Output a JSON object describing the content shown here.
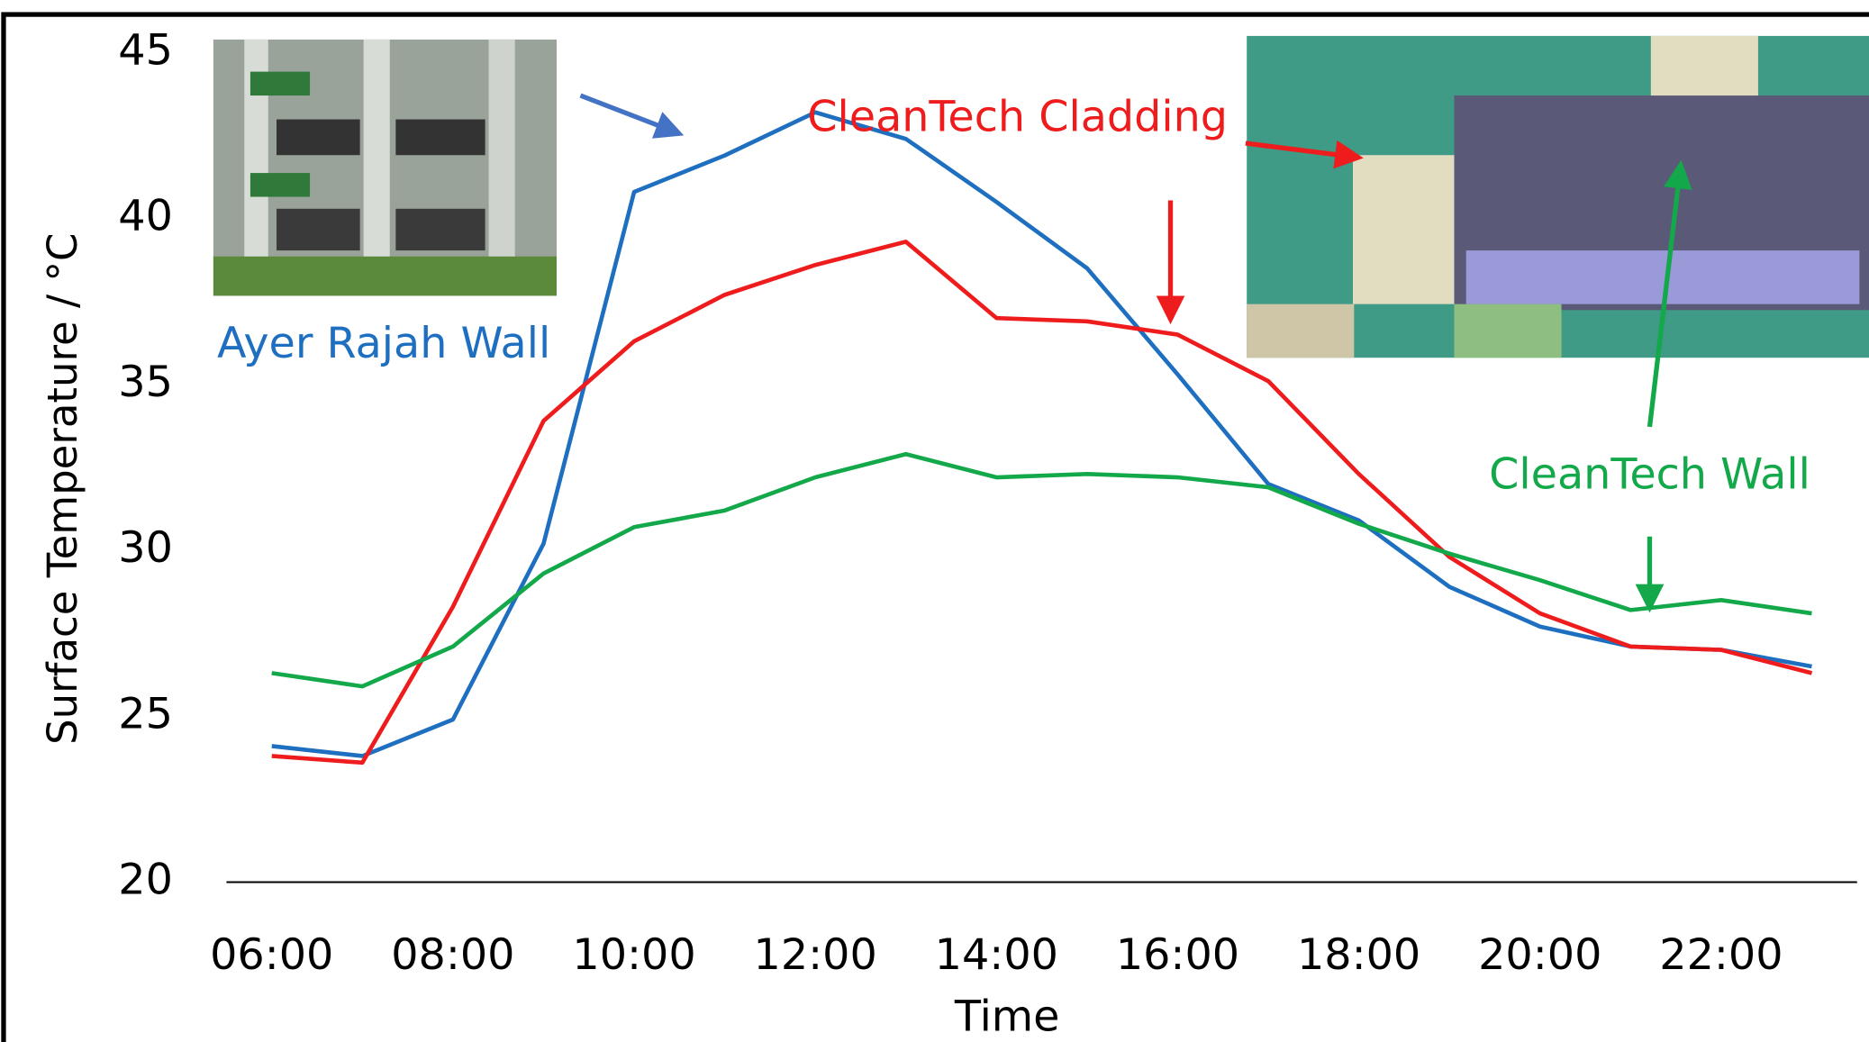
{
  "chart_data": {
    "type": "line",
    "x_label": "Time",
    "y_label": "Surface Temperature / °C",
    "categories": [
      "06:00",
      null,
      "08:00",
      null,
      "10:00",
      null,
      "12:00",
      null,
      "14:00",
      null,
      "16:00",
      null,
      "18:00",
      null,
      "20:00",
      null,
      "22:00",
      null
    ],
    "series": [
      {
        "name": "Ayer Rajah Wall",
        "color": "#1f6fc0",
        "values": [
          24.1,
          23.8,
          24.9,
          30.2,
          40.8,
          41.9,
          43.2,
          42.4,
          40.5,
          38.5,
          35.3,
          32.0,
          30.9,
          28.9,
          27.7,
          27.1,
          27.0,
          26.5
        ]
      },
      {
        "name": "CleanTech Cladding",
        "color": "#ee1c1c",
        "values": [
          23.8,
          23.6,
          28.3,
          33.9,
          36.3,
          37.7,
          38.6,
          39.3,
          37.0,
          36.9,
          36.5,
          35.1,
          32.3,
          29.8,
          28.1,
          27.1,
          27.0,
          26.3
        ]
      },
      {
        "name": "CleanTech Wall",
        "color": "#13a84a",
        "values": [
          26.3,
          25.9,
          27.1,
          29.3,
          30.7,
          31.2,
          32.2,
          32.9,
          32.2,
          32.3,
          32.2,
          31.9,
          30.8,
          29.9,
          29.1,
          28.2,
          28.5,
          28.1
        ]
      }
    ],
    "ylim": [
      20,
      45
    ],
    "yticks": [
      20,
      25,
      30,
      35,
      40,
      45
    ]
  }
}
